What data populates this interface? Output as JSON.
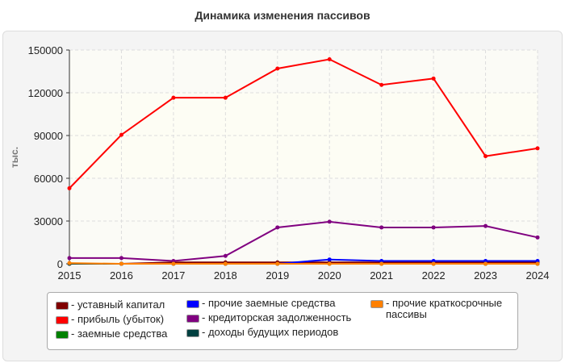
{
  "chart_data": {
    "type": "line",
    "title": "Динамика изменения пассивов",
    "ylabel": "тыс.",
    "xlabel": "",
    "x": [
      "2015",
      "2016",
      "2017",
      "2018",
      "2019",
      "2020",
      "2021",
      "2022",
      "2023",
      "2024"
    ],
    "ylim": [
      0,
      150000
    ],
    "yticks": [
      "0",
      "30000",
      "60000",
      "90000",
      "120000",
      "150000"
    ],
    "grid": true,
    "legend_position": "bottom",
    "series": [
      {
        "name": "- уставный капитал",
        "color": "#800000",
        "values": [
          0,
          0,
          1000,
          1000,
          1000,
          1000,
          1000,
          1000,
          1000,
          1000
        ]
      },
      {
        "name": "- прибыль (убыток)",
        "color": "#ff0000",
        "values": [
          53000,
          90500,
          116500,
          116500,
          137000,
          143500,
          125500,
          130000,
          75500,
          81000
        ]
      },
      {
        "name": "- заемные средства",
        "color": "#008000",
        "values": [
          0,
          0,
          0,
          0,
          0,
          0,
          0,
          0,
          0,
          0
        ]
      },
      {
        "name": "- прочие заемные средства",
        "color": "#0000ff",
        "values": [
          0,
          0,
          0,
          0,
          0,
          3000,
          2000,
          2000,
          2000,
          2000
        ]
      },
      {
        "name": "- кредиторская задолженность",
        "color": "#800080",
        "values": [
          4000,
          4000,
          2000,
          5500,
          25500,
          29500,
          25500,
          25500,
          26500,
          18500
        ]
      },
      {
        "name": "- доходы будущих периодов",
        "color": "#004040",
        "values": [
          0,
          0,
          0,
          0,
          0,
          0,
          0,
          0,
          0,
          0
        ]
      },
      {
        "name": "- прочие краткосрочные пассивы",
        "color": "#ff8000",
        "values": [
          500,
          0,
          0,
          0,
          0,
          0,
          0,
          0,
          0,
          0
        ]
      }
    ]
  }
}
